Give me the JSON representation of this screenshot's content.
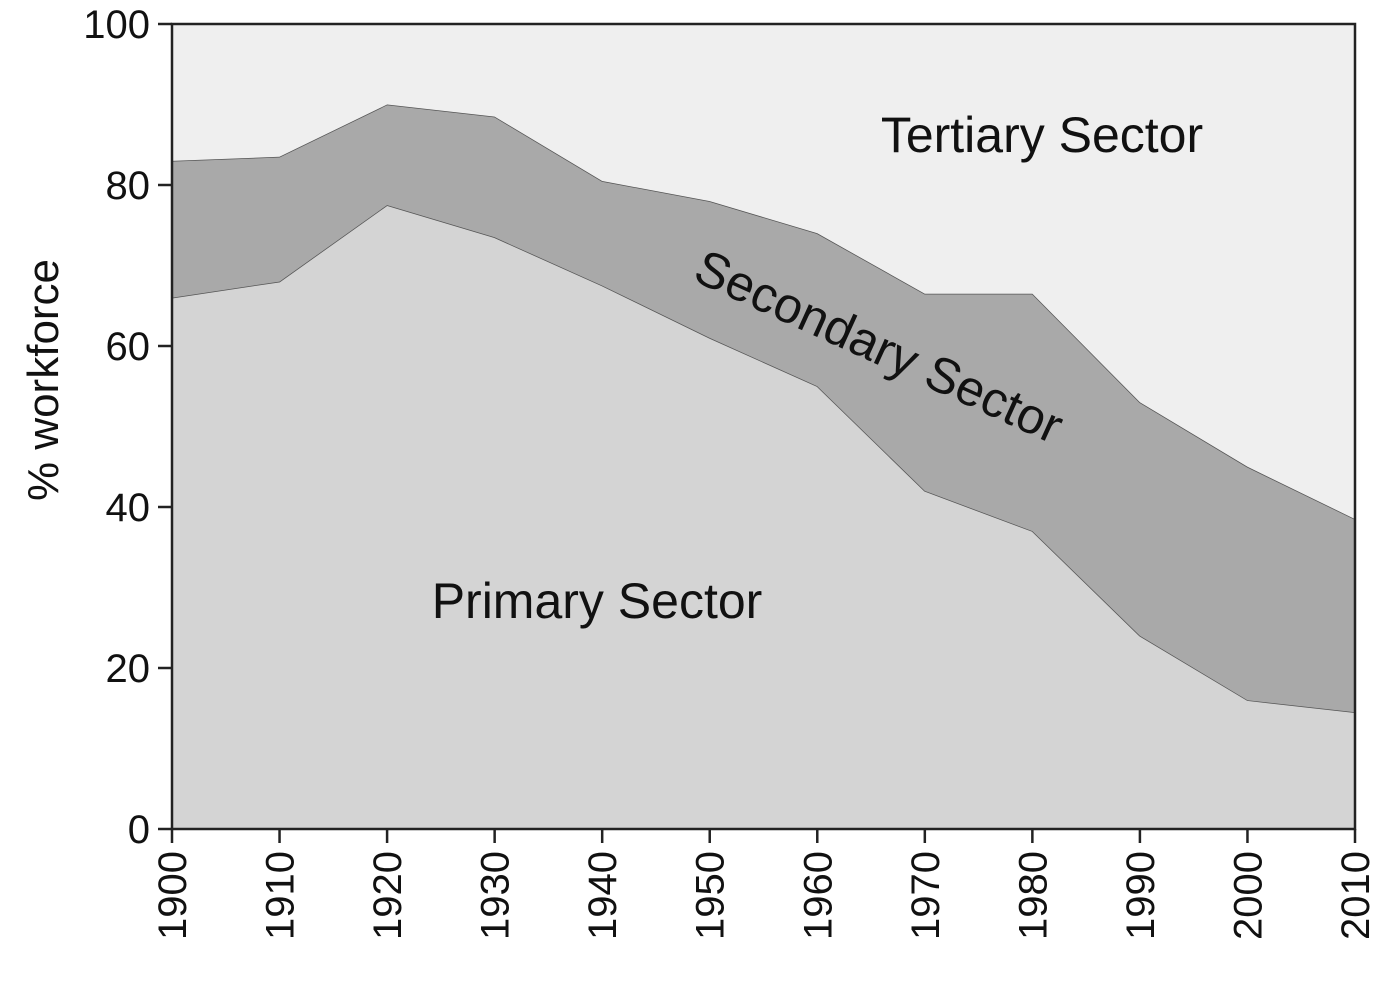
{
  "chart_data": {
    "type": "area",
    "stacked": true,
    "title": "",
    "xlabel": "",
    "ylabel": "% workforce",
    "x": [
      1900,
      1910,
      1920,
      1930,
      1940,
      1950,
      1960,
      1970,
      1980,
      1990,
      2000,
      2010
    ],
    "xticks": [
      "1900",
      "1910",
      "1920",
      "1930",
      "1940",
      "1950",
      "1960",
      "1970",
      "1980",
      "1990",
      "2000",
      "2010"
    ],
    "yticks": [
      "0",
      "20",
      "40",
      "60",
      "80",
      "100"
    ],
    "ylim": [
      0,
      100
    ],
    "xlim": [
      1900,
      2010
    ],
    "grid": false,
    "legend": "none",
    "series": [
      {
        "name": "Primary Sector",
        "values": [
          66,
          68,
          77.5,
          73.5,
          67.5,
          61,
          55,
          42,
          37,
          24,
          16,
          14.5
        ],
        "color": "#d4d4d4"
      },
      {
        "name": "Secondary Sector",
        "values": [
          17,
          15.5,
          12.5,
          15,
          13,
          17,
          19,
          24.5,
          29.5,
          29,
          29,
          24
        ],
        "color": "#a9a9a9"
      },
      {
        "name": "Tertiary Sector",
        "values": [
          17,
          16.5,
          10,
          11.5,
          19.5,
          22,
          26,
          33.5,
          33.5,
          47,
          55,
          61.5
        ],
        "color": "#efefef"
      }
    ]
  }
}
